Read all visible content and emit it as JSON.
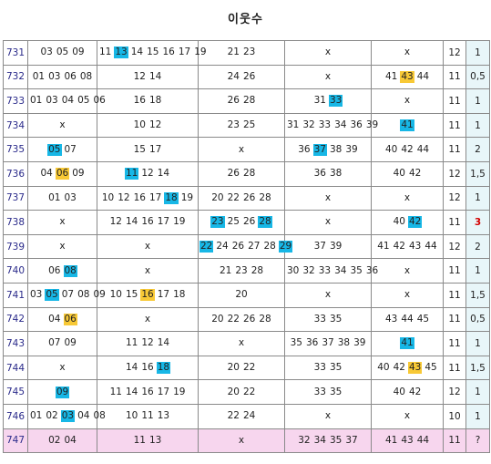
{
  "title": "이웃수",
  "rows": [
    {
      "no": "731",
      "c1": [
        {
          "t": "03"
        },
        {
          "t": "05"
        },
        {
          "t": "09"
        }
      ],
      "c2": [
        {
          "t": "11"
        },
        {
          "t": "13",
          "h": "blue"
        },
        {
          "t": "14"
        },
        {
          "t": "15"
        },
        {
          "t": "16"
        },
        {
          "t": "17"
        },
        {
          "t": "19"
        }
      ],
      "c3": [
        {
          "t": "21"
        },
        {
          "t": "23"
        }
      ],
      "c4": [
        {
          "t": "x"
        }
      ],
      "c5": [
        {
          "t": "x"
        }
      ],
      "count": "12",
      "score": "1"
    },
    {
      "no": "732",
      "c1": [
        {
          "t": "01"
        },
        {
          "t": "03"
        },
        {
          "t": "06"
        },
        {
          "t": "08"
        }
      ],
      "c2": [
        {
          "t": "12"
        },
        {
          "t": "14"
        }
      ],
      "c3": [
        {
          "t": "24"
        },
        {
          "t": "26"
        }
      ],
      "c4": [
        {
          "t": "x"
        }
      ],
      "c5": [
        {
          "t": "41"
        },
        {
          "t": "43",
          "h": "yellow"
        },
        {
          "t": "44"
        }
      ],
      "count": "11",
      "score": "0,5"
    },
    {
      "no": "733",
      "c1": [
        {
          "t": "01"
        },
        {
          "t": "03"
        },
        {
          "t": "04"
        },
        {
          "t": "05"
        },
        {
          "t": "06"
        }
      ],
      "c2": [
        {
          "t": "16"
        },
        {
          "t": "18"
        }
      ],
      "c3": [
        {
          "t": "26"
        },
        {
          "t": "28"
        }
      ],
      "c4": [
        {
          "t": "31"
        },
        {
          "t": "33",
          "h": "blue"
        }
      ],
      "c5": [
        {
          "t": "x"
        }
      ],
      "count": "11",
      "score": "1"
    },
    {
      "no": "734",
      "c1": [
        {
          "t": "x"
        }
      ],
      "c2": [
        {
          "t": "10"
        },
        {
          "t": "12"
        }
      ],
      "c3": [
        {
          "t": "23"
        },
        {
          "t": "25"
        }
      ],
      "c4": [
        {
          "t": "31"
        },
        {
          "t": "32"
        },
        {
          "t": "33"
        },
        {
          "t": "34"
        },
        {
          "t": "36"
        },
        {
          "t": "39"
        }
      ],
      "c5": [
        {
          "t": "41",
          "h": "blue"
        }
      ],
      "count": "11",
      "score": "1"
    },
    {
      "no": "735",
      "c1": [
        {
          "t": "05",
          "h": "blue"
        },
        {
          "t": "07"
        }
      ],
      "c2": [
        {
          "t": "15"
        },
        {
          "t": "17"
        }
      ],
      "c3": [
        {
          "t": "x"
        }
      ],
      "c4": [
        {
          "t": "36"
        },
        {
          "t": "37",
          "h": "blue"
        },
        {
          "t": "38"
        },
        {
          "t": "39"
        }
      ],
      "c5": [
        {
          "t": "40"
        },
        {
          "t": "42"
        },
        {
          "t": "44"
        }
      ],
      "count": "11",
      "score": "2"
    },
    {
      "no": "736",
      "c1": [
        {
          "t": "04"
        },
        {
          "t": "06",
          "h": "yellow"
        },
        {
          "t": "09"
        }
      ],
      "c2": [
        {
          "t": "11",
          "h": "blue"
        },
        {
          "t": "12"
        },
        {
          "t": "14"
        }
      ],
      "c3": [
        {
          "t": "26"
        },
        {
          "t": "28"
        }
      ],
      "c4": [
        {
          "t": "36"
        },
        {
          "t": "38"
        }
      ],
      "c5": [
        {
          "t": "40"
        },
        {
          "t": "42"
        }
      ],
      "count": "12",
      "score": "1,5"
    },
    {
      "no": "737",
      "c1": [
        {
          "t": "01"
        },
        {
          "t": "03"
        }
      ],
      "c2": [
        {
          "t": "10"
        },
        {
          "t": "12"
        },
        {
          "t": "16"
        },
        {
          "t": "17"
        },
        {
          "t": "18",
          "h": "blue"
        },
        {
          "t": "19"
        }
      ],
      "c3": [
        {
          "t": "20"
        },
        {
          "t": "22"
        },
        {
          "t": "26"
        },
        {
          "t": "28"
        }
      ],
      "c4": [
        {
          "t": "x"
        }
      ],
      "c5": [
        {
          "t": "x"
        }
      ],
      "count": "12",
      "score": "1"
    },
    {
      "no": "738",
      "c1": [
        {
          "t": "x"
        }
      ],
      "c2": [
        {
          "t": "12"
        },
        {
          "t": "14"
        },
        {
          "t": "16"
        },
        {
          "t": "17"
        },
        {
          "t": "19"
        }
      ],
      "c3": [
        {
          "t": "23",
          "h": "blue"
        },
        {
          "t": "25"
        },
        {
          "t": "26"
        },
        {
          "t": "28",
          "h": "blue"
        }
      ],
      "c4": [
        {
          "t": "x"
        }
      ],
      "c5": [
        {
          "t": "40"
        },
        {
          "t": "42",
          "h": "blue"
        }
      ],
      "count": "11",
      "score": "3",
      "hot": true
    },
    {
      "no": "739",
      "c1": [
        {
          "t": "x"
        }
      ],
      "c2": [
        {
          "t": "x"
        }
      ],
      "c3": [
        {
          "t": "22",
          "h": "blue"
        },
        {
          "t": "24"
        },
        {
          "t": "26"
        },
        {
          "t": "27"
        },
        {
          "t": "28"
        },
        {
          "t": "29",
          "h": "blue"
        }
      ],
      "c4": [
        {
          "t": "37"
        },
        {
          "t": "39"
        }
      ],
      "c5": [
        {
          "t": "41"
        },
        {
          "t": "42"
        },
        {
          "t": "43"
        },
        {
          "t": "44"
        }
      ],
      "count": "12",
      "score": "2"
    },
    {
      "no": "740",
      "c1": [
        {
          "t": "06"
        },
        {
          "t": "08",
          "h": "blue"
        }
      ],
      "c2": [
        {
          "t": "x"
        }
      ],
      "c3": [
        {
          "t": "21"
        },
        {
          "t": "23"
        },
        {
          "t": "28"
        }
      ],
      "c4": [
        {
          "t": "30"
        },
        {
          "t": "32"
        },
        {
          "t": "33"
        },
        {
          "t": "34"
        },
        {
          "t": "35"
        },
        {
          "t": "36"
        }
      ],
      "c5": [
        {
          "t": "x"
        }
      ],
      "count": "11",
      "score": "1"
    },
    {
      "no": "741",
      "c1": [
        {
          "t": "03"
        },
        {
          "t": "05",
          "h": "blue"
        },
        {
          "t": "07"
        },
        {
          "t": "08"
        },
        {
          "t": "09"
        }
      ],
      "c2": [
        {
          "t": "10"
        },
        {
          "t": "15"
        },
        {
          "t": "16",
          "h": "yellow"
        },
        {
          "t": "17"
        },
        {
          "t": "18"
        }
      ],
      "c3": [
        {
          "t": "20"
        }
      ],
      "c4": [
        {
          "t": "x"
        }
      ],
      "c5": [
        {
          "t": "x"
        }
      ],
      "count": "11",
      "score": "1,5"
    },
    {
      "no": "742",
      "c1": [
        {
          "t": "04"
        },
        {
          "t": "06",
          "h": "yellow"
        }
      ],
      "c2": [
        {
          "t": "x"
        }
      ],
      "c3": [
        {
          "t": "20"
        },
        {
          "t": "22"
        },
        {
          "t": "26"
        },
        {
          "t": "28"
        }
      ],
      "c4": [
        {
          "t": "33"
        },
        {
          "t": "35"
        }
      ],
      "c5": [
        {
          "t": "43"
        },
        {
          "t": "44"
        },
        {
          "t": "45"
        }
      ],
      "count": "11",
      "score": "0,5"
    },
    {
      "no": "743",
      "c1": [
        {
          "t": "07"
        },
        {
          "t": "09"
        }
      ],
      "c2": [
        {
          "t": "11"
        },
        {
          "t": "12"
        },
        {
          "t": "14"
        }
      ],
      "c3": [
        {
          "t": "x"
        }
      ],
      "c4": [
        {
          "t": "35"
        },
        {
          "t": "36"
        },
        {
          "t": "37"
        },
        {
          "t": "38"
        },
        {
          "t": "39"
        }
      ],
      "c5": [
        {
          "t": "41",
          "h": "blue"
        }
      ],
      "count": "11",
      "score": "1"
    },
    {
      "no": "744",
      "c1": [
        {
          "t": "x"
        }
      ],
      "c2": [
        {
          "t": "14"
        },
        {
          "t": "16"
        },
        {
          "t": "18",
          "h": "blue"
        }
      ],
      "c3": [
        {
          "t": "20"
        },
        {
          "t": "22"
        }
      ],
      "c4": [
        {
          "t": "33"
        },
        {
          "t": "35"
        }
      ],
      "c5": [
        {
          "t": "40"
        },
        {
          "t": "42"
        },
        {
          "t": "43",
          "h": "yellow"
        },
        {
          "t": "45"
        }
      ],
      "count": "11",
      "score": "1,5"
    },
    {
      "no": "745",
      "c1": [
        {
          "t": "09",
          "h": "blue"
        }
      ],
      "c2": [
        {
          "t": "11"
        },
        {
          "t": "14"
        },
        {
          "t": "16"
        },
        {
          "t": "17"
        },
        {
          "t": "19"
        }
      ],
      "c3": [
        {
          "t": "20"
        },
        {
          "t": "22"
        }
      ],
      "c4": [
        {
          "t": "33"
        },
        {
          "t": "35"
        }
      ],
      "c5": [
        {
          "t": "40"
        },
        {
          "t": "42"
        }
      ],
      "count": "12",
      "score": "1"
    },
    {
      "no": "746",
      "c1": [
        {
          "t": "01"
        },
        {
          "t": "02"
        },
        {
          "t": "03",
          "h": "blue"
        },
        {
          "t": "04"
        },
        {
          "t": "08"
        }
      ],
      "c2": [
        {
          "t": "10"
        },
        {
          "t": "11"
        },
        {
          "t": "13"
        }
      ],
      "c3": [
        {
          "t": "22"
        },
        {
          "t": "24"
        }
      ],
      "c4": [
        {
          "t": "x"
        }
      ],
      "c5": [
        {
          "t": "x"
        }
      ],
      "count": "10",
      "score": "1"
    },
    {
      "no": "747",
      "c1": [
        {
          "t": "02"
        },
        {
          "t": "04"
        }
      ],
      "c2": [
        {
          "t": "11"
        },
        {
          "t": "13"
        }
      ],
      "c3": [
        {
          "t": "x"
        }
      ],
      "c4": [
        {
          "t": "32"
        },
        {
          "t": "34"
        },
        {
          "t": "35"
        },
        {
          "t": "37"
        }
      ],
      "c5": [
        {
          "t": "41"
        },
        {
          "t": "43"
        },
        {
          "t": "44"
        }
      ],
      "count": "11",
      "score": "?",
      "pending": true
    }
  ]
}
